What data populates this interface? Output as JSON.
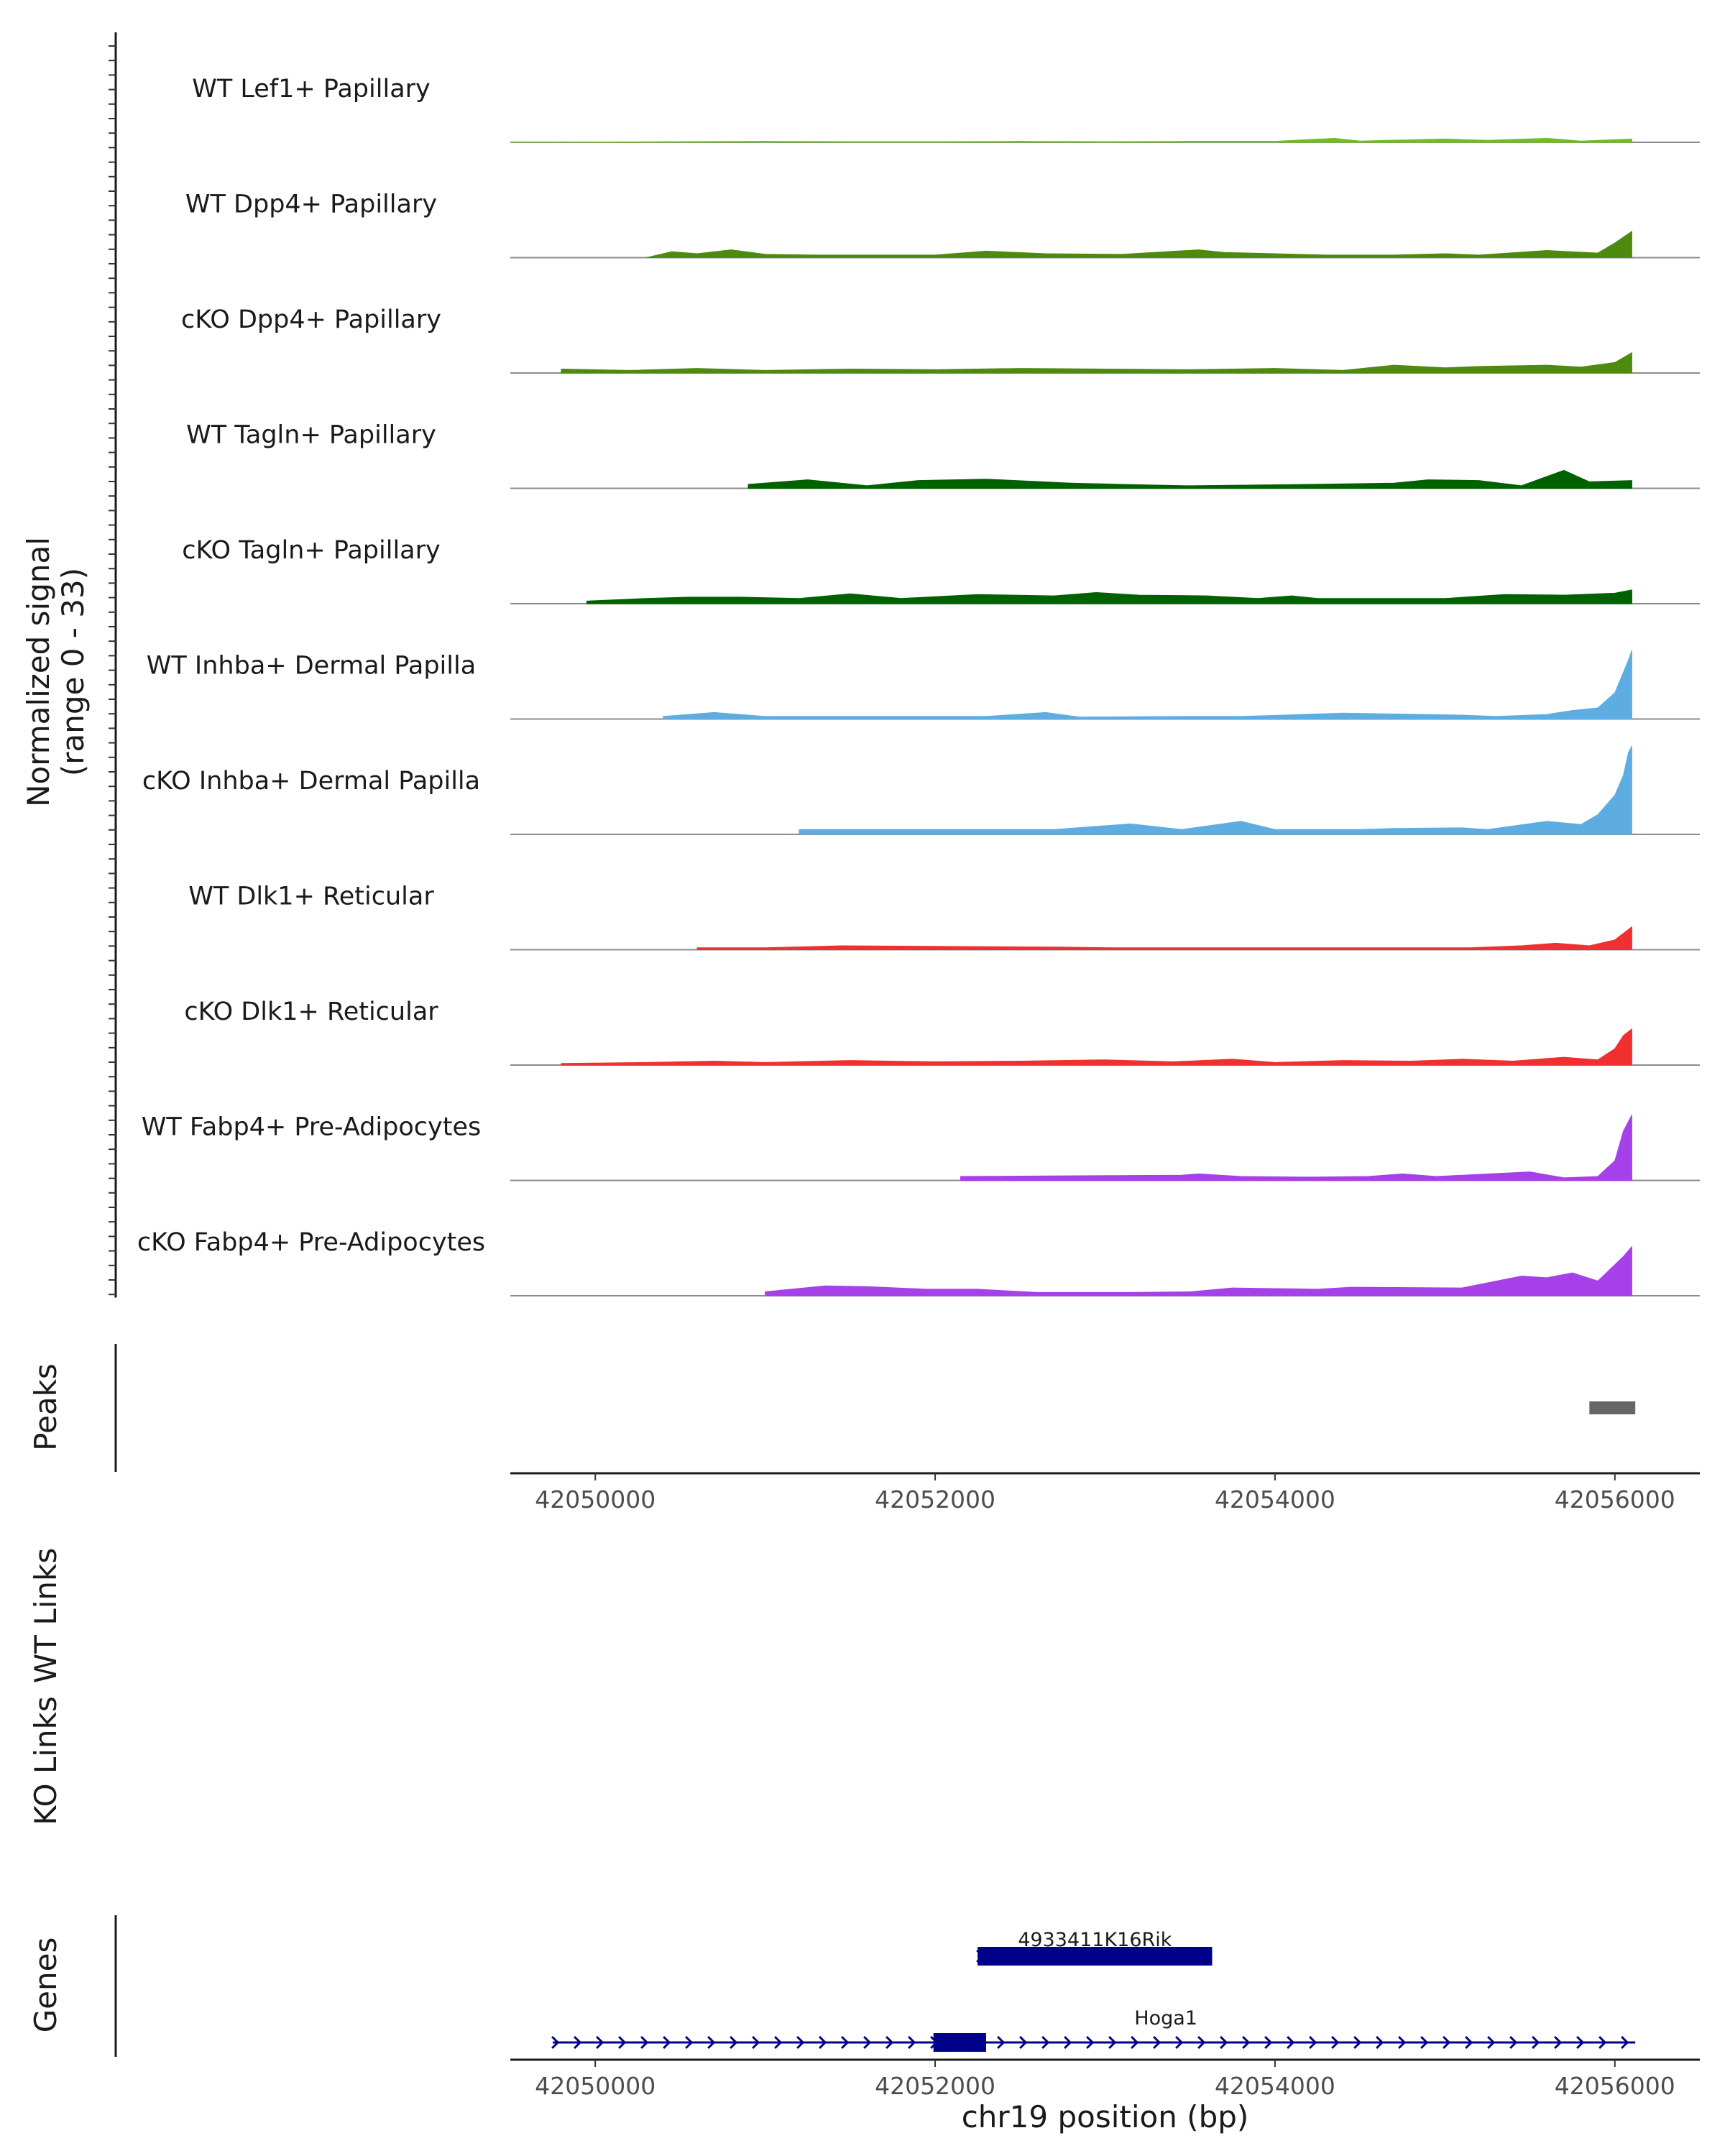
{
  "chart_data": {
    "type": "area",
    "title": "",
    "chromosome": "chr19",
    "xlabel": "chr19 position (bp)",
    "xlim": [
      42049500,
      42056500
    ],
    "x_ticks": [
      42050000,
      42052000,
      42054000,
      42056000
    ],
    "x_tick_labels": [
      "42050000",
      "42052000",
      "42054000",
      "42056000"
    ],
    "coverage_ylabel": "Normalized signal",
    "coverage_ylabel_range": "(range 0 - 33)",
    "ylim": [
      0,
      33
    ],
    "series": [
      {
        "name": "WT Lef1+ Papillary",
        "color": "#6fbf1f",
        "points": [
          [
            42049500,
            0
          ],
          [
            42050500,
            0.2
          ],
          [
            42051000,
            0.3
          ],
          [
            42051500,
            0.2
          ],
          [
            42052000,
            0.2
          ],
          [
            42052500,
            0.3
          ],
          [
            42053000,
            0.2
          ],
          [
            42053500,
            0.3
          ],
          [
            42054000,
            0.3
          ],
          [
            42054350,
            1.2
          ],
          [
            42054500,
            0.4
          ],
          [
            42055000,
            1.0
          ],
          [
            42055250,
            0.6
          ],
          [
            42055600,
            1.2
          ],
          [
            42055800,
            0.4
          ],
          [
            42056100,
            1.0
          ]
        ]
      },
      {
        "name": "WT Dpp4+ Papillary",
        "color": "#4e8a0e",
        "points": [
          [
            42050300,
            0
          ],
          [
            42050450,
            1.8
          ],
          [
            42050600,
            1.2
          ],
          [
            42050800,
            2.4
          ],
          [
            42051000,
            1.0
          ],
          [
            42051300,
            0.8
          ],
          [
            42051600,
            0.8
          ],
          [
            42052000,
            0.8
          ],
          [
            42052300,
            2.0
          ],
          [
            42052650,
            1.2
          ],
          [
            42053100,
            1.0
          ],
          [
            42053550,
            2.4
          ],
          [
            42053700,
            1.6
          ],
          [
            42054300,
            0.8
          ],
          [
            42054700,
            0.8
          ],
          [
            42055000,
            1.2
          ],
          [
            42055200,
            0.8
          ],
          [
            42055600,
            2.2
          ],
          [
            42055900,
            1.4
          ],
          [
            42056000,
            4.5
          ],
          [
            42056100,
            8.0
          ]
        ]
      },
      {
        "name": "cKO Dpp4+ Papillary",
        "color": "#4e8a0e",
        "points": [
          [
            42049800,
            1.2
          ],
          [
            42050200,
            0.8
          ],
          [
            42050600,
            1.4
          ],
          [
            42051000,
            0.8
          ],
          [
            42051500,
            1.2
          ],
          [
            42052000,
            1.0
          ],
          [
            42052500,
            1.4
          ],
          [
            42053000,
            1.2
          ],
          [
            42053500,
            1.0
          ],
          [
            42054000,
            1.4
          ],
          [
            42054400,
            0.8
          ],
          [
            42054700,
            2.4
          ],
          [
            42055000,
            1.6
          ],
          [
            42055200,
            2.0
          ],
          [
            42055600,
            2.4
          ],
          [
            42055800,
            1.8
          ],
          [
            42056000,
            3.2
          ],
          [
            42056100,
            6.2
          ]
        ]
      },
      {
        "name": "WT Tagln+ Papillary",
        "color": "#006100",
        "points": [
          [
            42050900,
            1.2
          ],
          [
            42051250,
            2.6
          ],
          [
            42051600,
            0.8
          ],
          [
            42051900,
            2.4
          ],
          [
            42052300,
            2.8
          ],
          [
            42052800,
            1.6
          ],
          [
            42053100,
            1.2
          ],
          [
            42053500,
            0.8
          ],
          [
            42054200,
            1.2
          ],
          [
            42054700,
            1.6
          ],
          [
            42054900,
            2.6
          ],
          [
            42055200,
            2.4
          ],
          [
            42055450,
            0.8
          ],
          [
            42055700,
            5.5
          ],
          [
            42055850,
            2.0
          ],
          [
            42056100,
            2.4
          ]
        ]
      },
      {
        "name": "cKO Tagln+ Papillary",
        "color": "#006100",
        "points": [
          [
            42049950,
            0.8
          ],
          [
            42050300,
            1.6
          ],
          [
            42050550,
            2.0
          ],
          [
            42050850,
            2.0
          ],
          [
            42051200,
            1.6
          ],
          [
            42051500,
            3.0
          ],
          [
            42051800,
            1.6
          ],
          [
            42052250,
            2.8
          ],
          [
            42052700,
            2.4
          ],
          [
            42052950,
            3.4
          ],
          [
            42053200,
            2.6
          ],
          [
            42053600,
            2.4
          ],
          [
            42053900,
            1.6
          ],
          [
            42054100,
            2.4
          ],
          [
            42054250,
            1.6
          ],
          [
            42055000,
            1.6
          ],
          [
            42055350,
            2.8
          ],
          [
            42055700,
            2.6
          ],
          [
            42056000,
            3.2
          ],
          [
            42056100,
            4.2
          ]
        ]
      },
      {
        "name": "WT Inhba+ Dermal Papilla",
        "color": "#5dade2",
        "points": [
          [
            42050400,
            0.8
          ],
          [
            42050700,
            2.0
          ],
          [
            42051000,
            0.8
          ],
          [
            42052100,
            0.8
          ],
          [
            42052300,
            0.8
          ],
          [
            42052650,
            2.0
          ],
          [
            42052850,
            0.6
          ],
          [
            42053450,
            0.8
          ],
          [
            42053800,
            0.8
          ],
          [
            42054400,
            1.8
          ],
          [
            42055100,
            1.2
          ],
          [
            42055300,
            0.8
          ],
          [
            42055600,
            1.4
          ],
          [
            42055750,
            2.6
          ],
          [
            42055900,
            3.4
          ],
          [
            42056000,
            8.0
          ],
          [
            42056080,
            18.0
          ],
          [
            42056100,
            21.0
          ]
        ]
      },
      {
        "name": "cKO Inhba+ Dermal Papilla",
        "color": "#5dade2",
        "points": [
          [
            42051200,
            1.5
          ],
          [
            42051550,
            1.5
          ],
          [
            42052700,
            1.5
          ],
          [
            42053150,
            3.2
          ],
          [
            42053450,
            1.5
          ],
          [
            42053800,
            4.0
          ],
          [
            42054000,
            1.5
          ],
          [
            42054500,
            1.5
          ],
          [
            42054700,
            1.8
          ],
          [
            42055100,
            2.0
          ],
          [
            42055250,
            1.5
          ],
          [
            42055600,
            4.0
          ],
          [
            42055800,
            3.0
          ],
          [
            42055900,
            6.0
          ],
          [
            42056000,
            12.0
          ],
          [
            42056050,
            18.0
          ],
          [
            42056080,
            25.0
          ],
          [
            42056100,
            27.0
          ]
        ]
      },
      {
        "name": "WT Dlk1+ Reticular",
        "color": "#f03030",
        "points": [
          [
            42050600,
            0.6
          ],
          [
            42051000,
            0.6
          ],
          [
            42051450,
            1.2
          ],
          [
            42052750,
            0.8
          ],
          [
            42053050,
            0.6
          ],
          [
            42053400,
            0.6
          ],
          [
            42054250,
            0.6
          ],
          [
            42054600,
            0.6
          ],
          [
            42055150,
            0.6
          ],
          [
            42055450,
            1.2
          ],
          [
            42055650,
            2.0
          ],
          [
            42055850,
            1.2
          ],
          [
            42056000,
            3.0
          ],
          [
            42056100,
            7.0
          ]
        ]
      },
      {
        "name": "cKO Dlk1+ Reticular",
        "color": "#f03030",
        "points": [
          [
            42049800,
            0.5
          ],
          [
            42050300,
            0.8
          ],
          [
            42050700,
            1.2
          ],
          [
            42051000,
            0.8
          ],
          [
            42051500,
            1.4
          ],
          [
            42052000,
            1.0
          ],
          [
            42052500,
            1.2
          ],
          [
            42053000,
            1.6
          ],
          [
            42053400,
            1.0
          ],
          [
            42053750,
            1.8
          ],
          [
            42054000,
            0.8
          ],
          [
            42054400,
            1.4
          ],
          [
            42054800,
            1.2
          ],
          [
            42055100,
            1.8
          ],
          [
            42055400,
            1.2
          ],
          [
            42055700,
            2.4
          ],
          [
            42055900,
            1.6
          ],
          [
            42056000,
            5.0
          ],
          [
            42056050,
            9.0
          ],
          [
            42056100,
            11.0
          ]
        ]
      },
      {
        "name": "WT Fabp4+ Pre-Adipocytes",
        "color": "#a640e8",
        "points": [
          [
            42052150,
            1.2
          ],
          [
            42053450,
            1.6
          ],
          [
            42053550,
            2.0
          ],
          [
            42053800,
            1.2
          ],
          [
            42054200,
            1.0
          ],
          [
            42054550,
            1.2
          ],
          [
            42054750,
            2.0
          ],
          [
            42054950,
            1.2
          ],
          [
            42055500,
            2.6
          ],
          [
            42055700,
            0.8
          ],
          [
            42055900,
            1.2
          ],
          [
            42056000,
            6.0
          ],
          [
            42056050,
            15.0
          ],
          [
            42056100,
            20.0
          ]
        ]
      },
      {
        "name": "cKO Fabp4+ Pre-Adipocytes",
        "color": "#a640e8",
        "points": [
          [
            42051000,
            1.2
          ],
          [
            42051350,
            3.0
          ],
          [
            42051600,
            2.8
          ],
          [
            42051950,
            2.0
          ],
          [
            42052250,
            2.0
          ],
          [
            42052600,
            1.0
          ],
          [
            42053150,
            1.0
          ],
          [
            42053500,
            1.2
          ],
          [
            42053750,
            2.4
          ],
          [
            42054250,
            2.0
          ],
          [
            42054450,
            2.6
          ],
          [
            42055100,
            2.4
          ],
          [
            42055450,
            6.0
          ],
          [
            42055600,
            5.5
          ],
          [
            42055750,
            7.0
          ],
          [
            42055900,
            4.5
          ],
          [
            42056050,
            12.0
          ],
          [
            42056100,
            15.0
          ]
        ]
      }
    ],
    "peaks": {
      "label": "Peaks",
      "color": "#666666",
      "regions": [
        [
          42055850,
          42056120
        ]
      ]
    },
    "links_tracks": [
      {
        "label": "WT Links",
        "links": []
      },
      {
        "label": "KO Links",
        "links": []
      }
    ],
    "genes": {
      "label": "Genes",
      "color": "#00008b",
      "items": [
        {
          "name": "4933411K16Rik",
          "start": 42052250,
          "end": 42053630,
          "strand": "+",
          "exons": [
            [
              42052250,
              42053630
            ]
          ]
        },
        {
          "name": "Hoga1",
          "start": 42049750,
          "end": 42056120,
          "strand": "+",
          "exons": [
            [
              42051990,
              42052300
            ]
          ]
        }
      ]
    }
  }
}
